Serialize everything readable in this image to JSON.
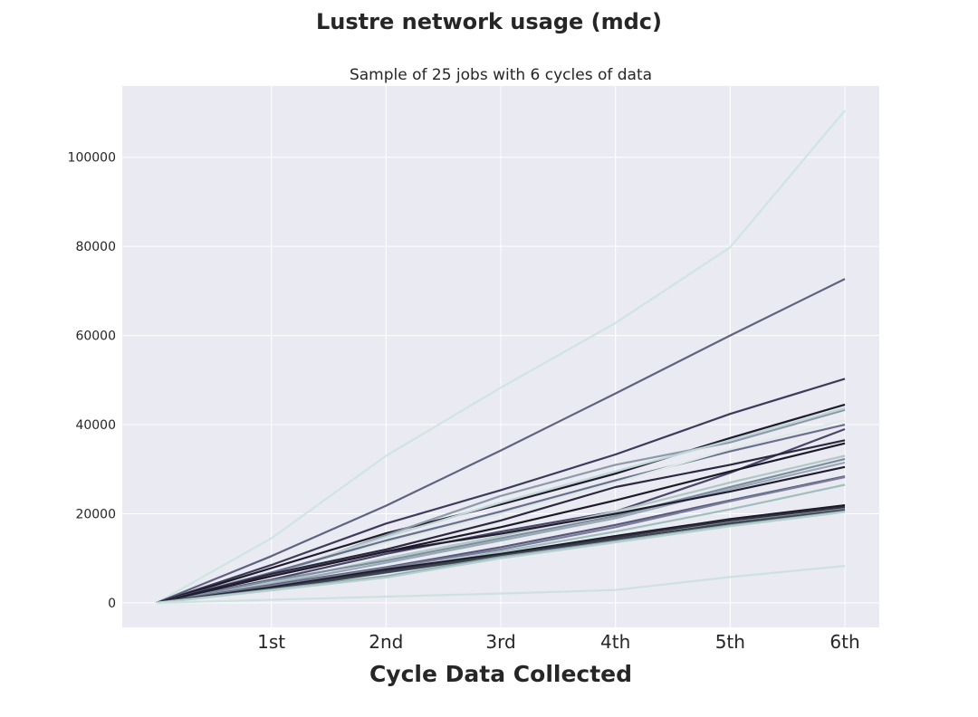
{
  "chart_data": {
    "type": "line",
    "title": "Lustre network usage (mdc)",
    "subtitle": "Sample of 25 jobs with 6 cycles of data",
    "xlabel": "Cycle Data Collected",
    "ylabel": "",
    "x": [
      0,
      1,
      2,
      3,
      4,
      5,
      6
    ],
    "x_tick_values": [
      1,
      2,
      3,
      4,
      5,
      6
    ],
    "x_tick_labels": [
      "1st",
      "2nd",
      "3rd",
      "4th",
      "5th",
      "6th"
    ],
    "y_ticks": [
      0,
      20000,
      40000,
      60000,
      80000,
      100000
    ],
    "xlim": [
      -0.3,
      6.3
    ],
    "ylim": [
      -5500,
      116000
    ],
    "grid": true,
    "legend": "none",
    "colors": {
      "background": "#EAEAF2",
      "grid": "#FFFFFF"
    },
    "series": [
      {
        "color": "#CFE5E1",
        "values": [
          0,
          14500,
          33000,
          48300,
          62800,
          79800,
          110500
        ]
      },
      {
        "color": "#5F6380",
        "values": [
          0,
          10500,
          21800,
          34200,
          47000,
          60000,
          72700
        ]
      },
      {
        "color": "#3E3B5A",
        "values": [
          0,
          8500,
          17800,
          25300,
          33300,
          42400,
          50300
        ]
      },
      {
        "color": "#1E1C2C",
        "values": [
          0,
          7800,
          15600,
          22100,
          29000,
          37000,
          44500
        ]
      },
      {
        "color": "#8D9AAA",
        "values": [
          0,
          6000,
          15200,
          24000,
          31000,
          36000,
          43300
        ]
      },
      {
        "color": "#BFD6D6",
        "values": [
          0,
          6500,
          14800,
          22500,
          29500,
          36500,
          43700
        ]
      },
      {
        "color": "#6B6F8E",
        "values": [
          0,
          6800,
          14000,
          20500,
          27500,
          34000,
          40000
        ]
      },
      {
        "color": "#DCEAE8",
        "values": [
          0,
          6200,
          13500,
          20000,
          27000,
          34500,
          41000
        ]
      },
      {
        "color": "#4A4668",
        "values": [
          0,
          5200,
          11000,
          16000,
          20500,
          29200,
          39000
        ]
      },
      {
        "color": "#2B283F",
        "values": [
          0,
          6500,
          12000,
          18500,
          26000,
          31000,
          36500
        ]
      },
      {
        "color": "#1B1A26",
        "values": [
          0,
          6000,
          11500,
          17000,
          23000,
          29500,
          35800
        ]
      },
      {
        "color": "#AFC8C6",
        "values": [
          0,
          4500,
          10000,
          15000,
          20500,
          27000,
          33000
        ]
      },
      {
        "color": "#7F8FA0",
        "values": [
          0,
          5000,
          9500,
          14500,
          19500,
          26000,
          32300
        ]
      },
      {
        "color": "#97A9B4",
        "values": [
          0,
          4200,
          9000,
          14000,
          19000,
          25500,
          31500
        ]
      },
      {
        "color": "#201E2E",
        "values": [
          0,
          6000,
          11500,
          15500,
          20000,
          25000,
          30500
        ]
      },
      {
        "color": "#58597A",
        "values": [
          0,
          4000,
          8000,
          12500,
          17500,
          23000,
          28400
        ]
      },
      {
        "color": "#7B7E9A",
        "values": [
          0,
          3800,
          7800,
          12000,
          17000,
          22800,
          28200
        ]
      },
      {
        "color": "#9FBEBE",
        "values": [
          0,
          3200,
          7000,
          11500,
          16000,
          21000,
          26500
        ]
      },
      {
        "color": "#1A1A22",
        "values": [
          0,
          3500,
          7500,
          11000,
          15000,
          18800,
          21900
        ]
      },
      {
        "color": "#2F3042",
        "values": [
          0,
          3300,
          7200,
          10700,
          14700,
          18500,
          21500
        ]
      },
      {
        "color": "#5E6E78",
        "values": [
          0,
          3000,
          6800,
          10500,
          14200,
          18000,
          21000
        ]
      },
      {
        "color": "#3C4452",
        "values": [
          0,
          3100,
          6900,
          10600,
          14300,
          17800,
          20700
        ]
      },
      {
        "color": "#8FAAAE",
        "values": [
          0,
          3000,
          6000,
          10300,
          13800,
          17400,
          20500
        ]
      },
      {
        "color": "#B4CFCC",
        "values": [
          0,
          2800,
          5700,
          10000,
          13600,
          17200,
          20400
        ]
      },
      {
        "color": "#CDE2DF",
        "values": [
          0,
          700,
          1400,
          2100,
          2900,
          5800,
          8300
        ]
      }
    ]
  }
}
